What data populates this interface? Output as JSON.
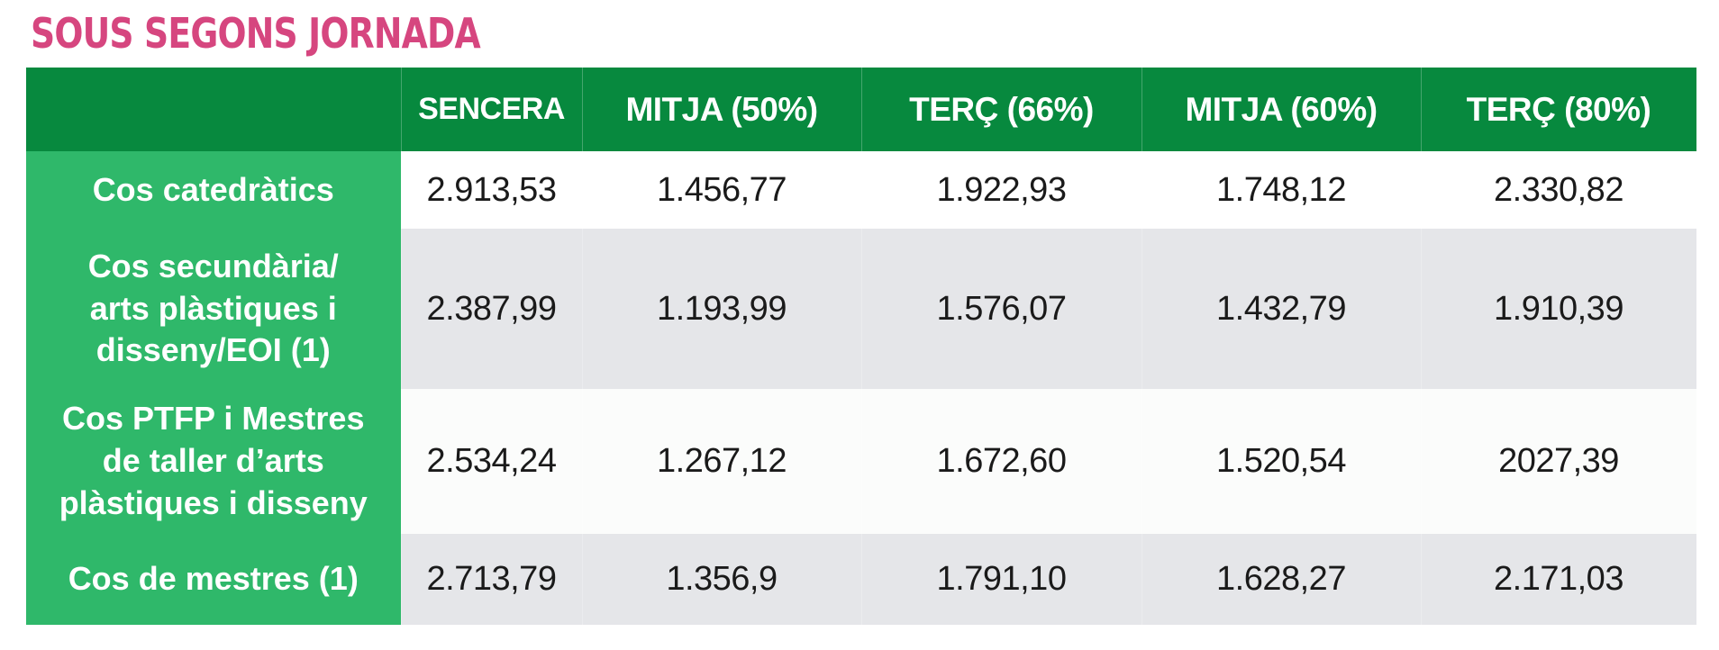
{
  "title": "SOUS SEGONS JORNADA",
  "table": {
    "headers": [
      "",
      "SENCERA",
      "MITJA (50%)",
      "TERÇ (66%)",
      "MITJA (60%)",
      "TERÇ (80%)"
    ],
    "rows": [
      {
        "label": "Cos catedràtics",
        "values": [
          "2.913,53",
          "1.456,77",
          "1.922,93",
          "1.748,12",
          "2.330,82"
        ]
      },
      {
        "label_lines": [
          "Cos secundària/",
          "arts plàstiques i",
          "disseny/EOI (1)"
        ],
        "values": [
          "2.387,99",
          "1.193,99",
          "1.576,07",
          "1.432,79",
          "1.910,39"
        ]
      },
      {
        "label_lines": [
          "Cos PTFP i Mestres",
          "de taller d’arts",
          "plàstiques i disseny"
        ],
        "values": [
          "2.534,24",
          "1.267,12",
          "1.672,60",
          "1.520,54",
          "2027,39"
        ]
      },
      {
        "label": "Cos de mestres (1)",
        "values": [
          "2.713,79",
          "1.356,9",
          "1.791,10",
          "1.628,27",
          "2.171,03"
        ]
      }
    ]
  },
  "colors": {
    "title": "#d6467f",
    "header_bg": "#07893e",
    "label_bg": "#2fb86a",
    "row_grey": "#e5e6e9"
  }
}
